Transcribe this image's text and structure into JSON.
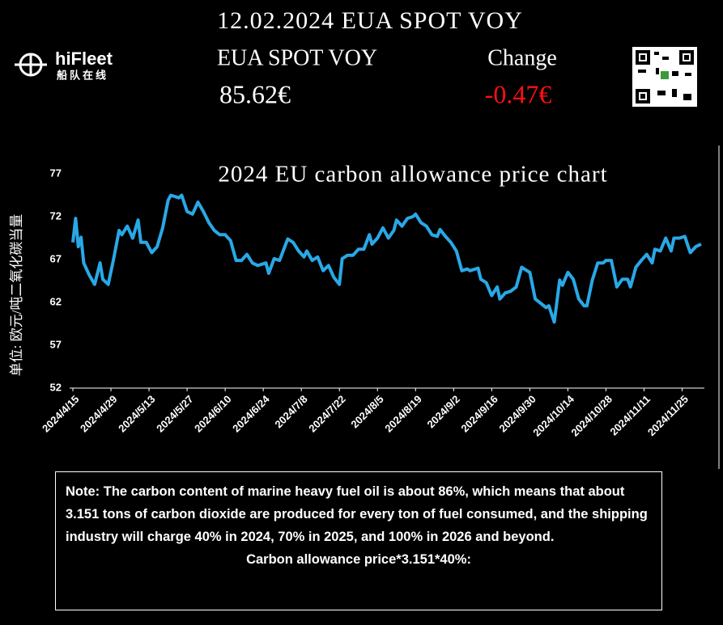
{
  "header": {
    "title": "12.02.2024 EUA SPOT VOY",
    "brand": "hiFleet",
    "brand_sub": "船队在线",
    "product_label": "EUA SPOT VOY",
    "change_label": "Change",
    "price": "85.62€",
    "change": "-0.47€"
  },
  "chart_data": {
    "type": "line",
    "title": "2024 EU carbon allowance price chart",
    "y_label": "单位: 欧元/吨二氧化碳当量",
    "x": [
      "2024/4/15",
      "2024/4/16",
      "2024/4/17",
      "2024/4/18",
      "2024/4/19",
      "2024/4/21",
      "2024/4/23",
      "2024/4/25",
      "2024/4/26",
      "2024/4/28",
      "2024/4/30",
      "2024/5/2",
      "2024/5/3",
      "2024/5/5",
      "2024/5/7",
      "2024/5/9",
      "2024/5/10",
      "2024/5/12",
      "2024/5/14",
      "2024/5/16",
      "2024/5/18",
      "2024/5/20",
      "2024/5/21",
      "2024/5/24",
      "2024/5/25",
      "2024/5/27",
      "2024/5/29",
      "2024/5/31",
      "2024/6/2",
      "2024/6/4",
      "2024/6/6",
      "2024/6/8",
      "2024/6/10",
      "2024/6/12",
      "2024/6/14",
      "2024/6/16",
      "2024/6/18",
      "2024/6/20",
      "2024/6/22",
      "2024/6/25",
      "2024/6/26",
      "2024/6/28",
      "2024/6/30",
      "2024/7/3",
      "2024/7/5",
      "2024/7/7",
      "2024/7/9",
      "2024/7/10",
      "2024/7/12",
      "2024/7/14",
      "2024/7/16",
      "2024/7/18",
      "2024/7/20",
      "2024/7/22",
      "2024/7/23",
      "2024/7/25",
      "2024/7/27",
      "2024/7/29",
      "2024/7/31",
      "2024/8/2",
      "2024/8/3",
      "2024/8/5",
      "2024/8/7",
      "2024/8/9",
      "2024/8/11",
      "2024/8/12",
      "2024/8/14",
      "2024/8/16",
      "2024/8/18",
      "2024/8/19",
      "2024/8/21",
      "2024/8/23",
      "2024/8/25",
      "2024/8/27",
      "2024/8/28",
      "2024/8/30",
      "2024/9/1",
      "2024/9/3",
      "2024/9/5",
      "2024/9/7",
      "2024/9/8",
      "2024/9/11",
      "2024/9/12",
      "2024/9/14",
      "2024/9/16",
      "2024/9/18",
      "2024/9/19",
      "2024/9/21",
      "2024/9/23",
      "2024/9/25",
      "2024/9/27",
      "2024/9/28",
      "2024/9/30",
      "2024/10/2",
      "2024/10/4",
      "2024/10/6",
      "2024/10/7",
      "2024/10/9",
      "2024/10/11",
      "2024/10/12",
      "2024/10/14",
      "2024/10/16",
      "2024/10/18",
      "2024/10/20",
      "2024/10/21",
      "2024/10/23",
      "2024/10/25",
      "2024/10/27",
      "2024/10/28",
      "2024/10/30",
      "2024/11/1",
      "2024/11/3",
      "2024/11/5",
      "2024/11/6",
      "2024/11/8",
      "2024/11/10",
      "2024/11/12",
      "2024/11/14",
      "2024/11/15",
      "2024/11/17",
      "2024/11/19",
      "2024/11/21",
      "2024/11/22",
      "2024/11/24",
      "2024/11/26",
      "2024/11/28",
      "2024/11/30",
      "2024/12/2"
    ],
    "series": [
      {
        "name": "EUA SPOT VOY",
        "color": "#29a8e6",
        "values": [
          69.0,
          71.8,
          68.5,
          69.6,
          66.6,
          65.2,
          64.1,
          66.6,
          64.7,
          64.1,
          67.1,
          70.4,
          69.9,
          70.9,
          69.5,
          71.6,
          69.0,
          69.0,
          67.8,
          68.5,
          70.7,
          73.9,
          74.5,
          74.2,
          74.5,
          72.6,
          72.3,
          73.7,
          72.6,
          71.3,
          70.4,
          69.9,
          69.9,
          69.2,
          66.9,
          66.9,
          67.6,
          66.6,
          66.3,
          66.6,
          65.4,
          67.1,
          66.9,
          69.4,
          69.0,
          68.0,
          67.3,
          68.0,
          66.9,
          67.3,
          65.7,
          66.3,
          64.9,
          64.1,
          67.1,
          67.5,
          67.5,
          68.2,
          68.2,
          69.9,
          68.8,
          69.5,
          70.7,
          69.5,
          70.4,
          71.6,
          70.9,
          71.8,
          72.0,
          72.3,
          71.3,
          70.9,
          69.9,
          69.7,
          70.5,
          69.7,
          69.0,
          68.0,
          65.7,
          65.9,
          65.7,
          66.0,
          64.7,
          64.3,
          62.8,
          63.8,
          62.4,
          63.1,
          63.3,
          63.8,
          66.1,
          65.9,
          65.5,
          62.4,
          61.9,
          61.4,
          61.6,
          59.7,
          64.6,
          64.0,
          65.5,
          64.7,
          62.4,
          61.6,
          61.6,
          64.6,
          66.6,
          66.6,
          66.9,
          66.9,
          63.8,
          64.7,
          64.7,
          63.8,
          66.1,
          66.9,
          67.6,
          66.6,
          68.2,
          68.0,
          69.5,
          68.0,
          69.5,
          69.5,
          69.7,
          67.8,
          68.5,
          68.8
        ]
      }
    ],
    "xlim": [
      "2024/4/15",
      "2024/12/2"
    ],
    "xticks": [
      "2024/4/15",
      "2024/4/29",
      "2024/5/13",
      "2024/5/27",
      "2024/6/10",
      "2024/6/24",
      "2024/7/8",
      "2024/7/22",
      "2024/8/5",
      "2024/8/19",
      "2024/9/2",
      "2024/9/16",
      "2024/9/30",
      "2024/10/14",
      "2024/10/28",
      "2024/11/11",
      "2024/11/25"
    ],
    "ylim": [
      52,
      77
    ],
    "yticks": [
      52,
      57,
      62,
      67,
      72,
      77
    ],
    "grid": false
  },
  "note": {
    "text": "Note: The carbon content of marine heavy fuel oil is about 86%, which means that about 3.151 tons of carbon dioxide are produced for every ton of fuel consumed, and the shipping industry will charge 40% in 2024, 70% in 2025, and 100% in 2026 and beyond.",
    "formula": "Carbon allowance price*3.151*40%:"
  }
}
